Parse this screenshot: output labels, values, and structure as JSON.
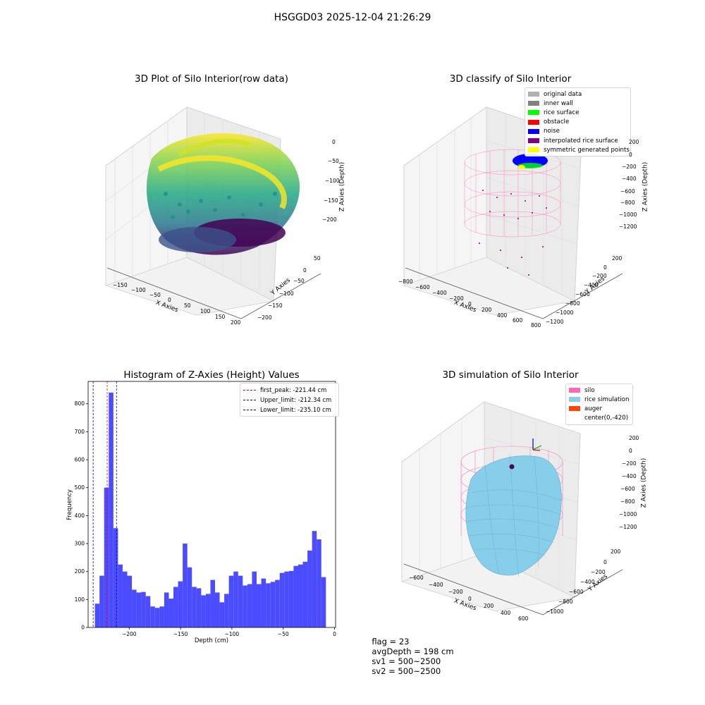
{
  "figure": {
    "suptitle": "HSGGD03 2025-12-04 21:26:29"
  },
  "footer": {
    "flag": "flag = 23",
    "avg_depth": "avgDepth = 198 cm",
    "sv1": "sv1 = 500~2500",
    "sv2": "sv2 = 500~2500"
  },
  "chart_data": [
    {
      "type": "scatter",
      "title": "3D Plot of Silo Interior(row data)",
      "xlabel": "X Axies",
      "ylabel": "Y Axies",
      "zlabel": "Z Axies (Depth)",
      "x_ticks": [
        "−150",
        "−100",
        "−50",
        "0",
        "50",
        "100",
        "150",
        "200"
      ],
      "y_ticks": [
        "50",
        "0",
        "−50",
        "−100",
        "−150",
        "−200"
      ],
      "z_ticks": [
        "0",
        "−50",
        "−100",
        "−150",
        "−200"
      ],
      "colormap": "viridis"
    },
    {
      "type": "scatter",
      "title": "3D classify of Silo Interior",
      "xlabel": "X Axies",
      "ylabel": "Y Axies",
      "zlabel": "Z Axies (Depth)",
      "x_ticks": [
        "−800",
        "−600",
        "−400",
        "−200",
        "0",
        "200",
        "400",
        "600",
        "800"
      ],
      "y_ticks": [
        "200",
        "0",
        "−200",
        "−400",
        "−600",
        "−800",
        "−1000",
        "−1200"
      ],
      "z_ticks": [
        "200",
        "0",
        "−200",
        "−400",
        "−600",
        "−800",
        "−1000",
        "−1200"
      ],
      "legend": [
        {
          "label": "original data",
          "color": "#b0b0b0"
        },
        {
          "label": "inner wall",
          "color": "#808080"
        },
        {
          "label": "rice surface",
          "color": "#00ff00"
        },
        {
          "label": "obstacle",
          "color": "#ff0000"
        },
        {
          "label": "noise",
          "color": "#0000ff"
        },
        {
          "label": "interpolated rice surface",
          "color": "#800080"
        },
        {
          "label": "symmetric generated points",
          "color": "#ffff00"
        }
      ]
    },
    {
      "type": "bar",
      "title": "Histogram of Z-Axies (Height) Values",
      "xlabel": "Depth (cm)",
      "ylabel": "Frequency",
      "xlim": [
        -240,
        1
      ],
      "ylim": [
        0,
        880
      ],
      "x_ticks": [
        -200,
        -150,
        -100,
        -50,
        0
      ],
      "y_ticks": [
        0,
        100,
        200,
        300,
        400,
        500,
        600,
        700,
        800
      ],
      "bin_start": -233.4,
      "bin_width": 4.5,
      "values": [
        85,
        185,
        500,
        840,
        355,
        225,
        200,
        185,
        135,
        125,
        127,
        112,
        75,
        70,
        75,
        125,
        103,
        145,
        165,
        300,
        215,
        145,
        140,
        115,
        120,
        170,
        125,
        90,
        120,
        185,
        200,
        185,
        150,
        155,
        200,
        155,
        175,
        158,
        163,
        170,
        195,
        200,
        202,
        220,
        225,
        235,
        275,
        345,
        315,
        180
      ],
      "bar_color": "#4b4bff",
      "vlines": [
        {
          "label": "first_peak: -221.44 cm",
          "x": -221.44,
          "color": "#ff0000"
        },
        {
          "label": "Upper_limit: -212.34 cm",
          "x": -212.34,
          "color": "#0000cc"
        },
        {
          "label": "Lower_limit: -235.10 cm",
          "x": -235.1,
          "color": "#0000cc"
        }
      ]
    },
    {
      "type": "other",
      "title": "3D simulation of Silo Interior",
      "xlabel": "X Axies",
      "ylabel": "Y Axies",
      "zlabel": "Z Axies (Depth)",
      "x_ticks": [
        "−600",
        "−400",
        "−200",
        "0",
        "200",
        "400",
        "600"
      ],
      "y_ticks": [
        "200",
        "0",
        "−200",
        "−400",
        "−600",
        "−800",
        "−1000"
      ],
      "z_ticks": [
        "200",
        "0",
        "−200",
        "−400",
        "−600",
        "−800",
        "−1000",
        "−1200"
      ],
      "legend": [
        {
          "label": "silo",
          "color": "#ff69b4"
        },
        {
          "label": "rice simulation",
          "color": "#87ceeb"
        },
        {
          "label": "auger",
          "color": "#ff4500"
        },
        {
          "label": "center(0,-420)",
          "color": ""
        }
      ]
    }
  ]
}
